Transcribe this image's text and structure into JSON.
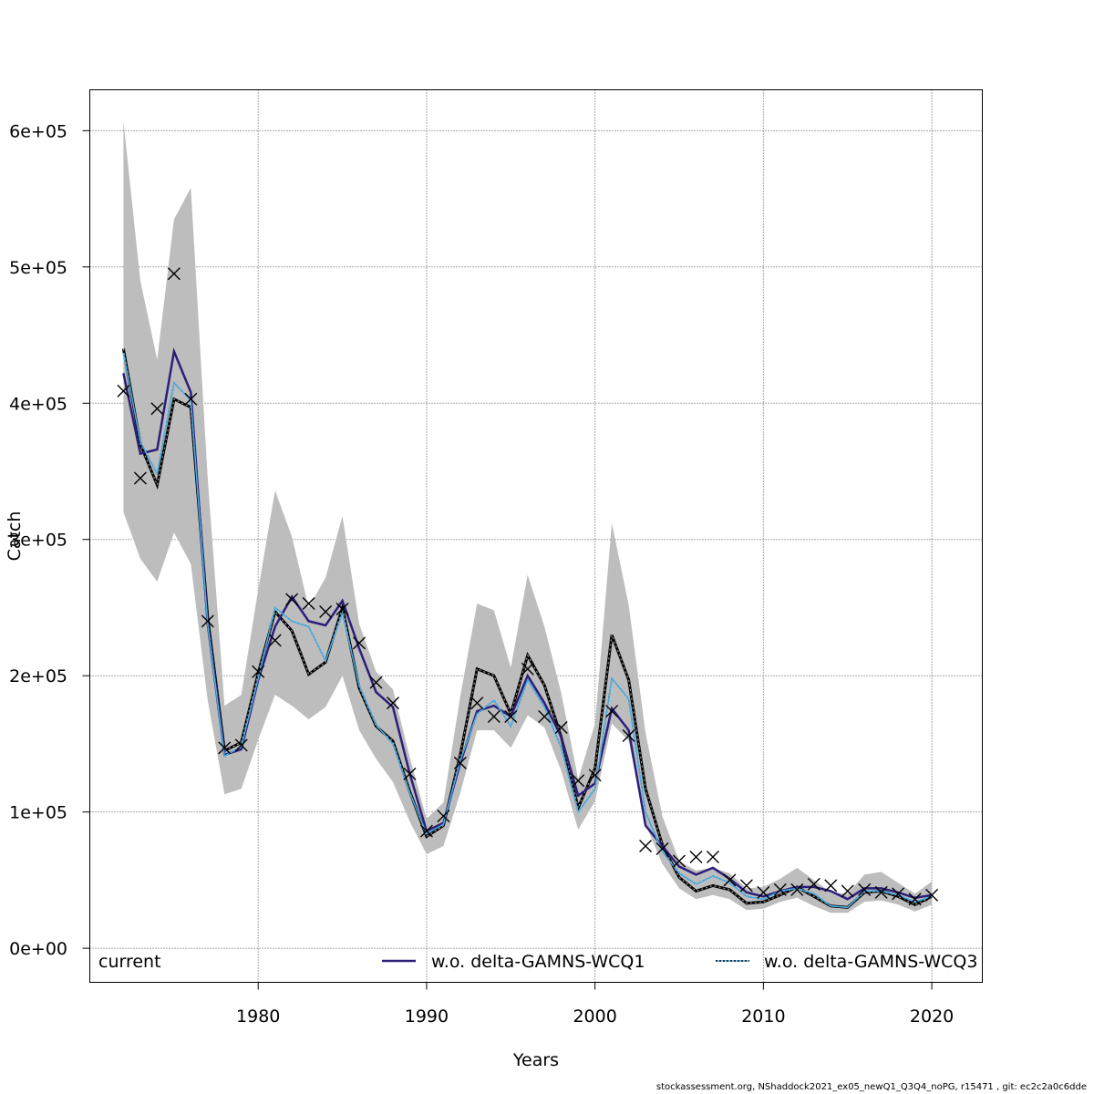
{
  "chart_data": {
    "type": "line",
    "title": "",
    "xlabel": "Years",
    "ylabel": "Catch",
    "xlim": [
      1970,
      2023
    ],
    "ylim": [
      -25000,
      630000
    ],
    "x_ticks": [
      1980,
      1990,
      2000,
      2010,
      2020
    ],
    "x_tick_labels": [
      "1980",
      "1990",
      "2000",
      "2010",
      "2020"
    ],
    "y_ticks": [
      0,
      100000,
      200000,
      300000,
      400000,
      500000,
      600000
    ],
    "y_tick_labels": [
      "0e+00",
      "1e+05",
      "2e+05",
      "3e+05",
      "4e+05",
      "5e+05",
      "6e+05"
    ],
    "grid": true,
    "legend_position": "bottom",
    "legend": [
      {
        "name": "current",
        "style": "none"
      },
      {
        "name": "w.o. delta-GAMNS-WCQ1",
        "style": "solid",
        "color": "#2d1e7a"
      },
      {
        "name": "w.o. delta-GAMNS-WCQ3",
        "style": "dotted",
        "color": "#49b0e8"
      }
    ],
    "years": [
      1972,
      1973,
      1974,
      1975,
      1976,
      1977,
      1978,
      1979,
      1980,
      1981,
      1982,
      1983,
      1984,
      1985,
      1986,
      1987,
      1988,
      1989,
      1990,
      1991,
      1992,
      1993,
      1994,
      1995,
      1996,
      1997,
      1998,
      1999,
      2000,
      2001,
      2002,
      2003,
      2004,
      2005,
      2006,
      2007,
      2008,
      2009,
      2010,
      2011,
      2012,
      2013,
      2014,
      2015,
      2016,
      2017,
      2018,
      2019,
      2020
    ],
    "band": {
      "name": "current confidence band",
      "color": "#bdbdbd",
      "upper": [
        607000,
        490000,
        432000,
        535000,
        558000,
        345000,
        178000,
        186000,
        263000,
        336000,
        302000,
        250000,
        272000,
        317000,
        238000,
        203000,
        190000,
        140000,
        95000,
        107000,
        185000,
        253000,
        248000,
        206000,
        274000,
        236000,
        187000,
        124000,
        165000,
        312000,
        252000,
        158000,
        97000,
        64000,
        57000,
        59000,
        55000,
        44000,
        45000,
        51000,
        59000,
        50000,
        41000,
        40000,
        54000,
        56000,
        48000,
        40000,
        49000
      ],
      "lower": [
        320000,
        286000,
        269000,
        305000,
        282000,
        182000,
        113000,
        117000,
        153000,
        186000,
        178000,
        168000,
        177000,
        200000,
        160000,
        139000,
        122000,
        93000,
        69000,
        75000,
        114000,
        160000,
        160000,
        147000,
        171000,
        162000,
        130000,
        87000,
        108000,
        165000,
        152000,
        91000,
        62000,
        44000,
        36000,
        39000,
        36000,
        28000,
        29000,
        34000,
        37000,
        31000,
        26000,
        26000,
        34000,
        35000,
        32000,
        27000,
        32000
      ]
    },
    "series": [
      {
        "name": "current",
        "color": "#000000",
        "style": "solid",
        "values": [
          440000,
          370000,
          340000,
          403000,
          397000,
          243000,
          145000,
          151000,
          202000,
          247000,
          233000,
          201000,
          210000,
          250000,
          191000,
          163000,
          152000,
          115000,
          82000,
          90000,
          142000,
          205000,
          200000,
          172000,
          215000,
          193000,
          155000,
          103000,
          132000,
          230000,
          197000,
          117000,
          76000,
          52000,
          42000,
          46000,
          43000,
          33000,
          34000,
          39000,
          45000,
          38000,
          31000,
          30000,
          41000,
          42000,
          38000,
          32000,
          38000
        ]
      },
      {
        "name": "w.o. delta-GAMNS-WCQ1",
        "color": "#2d1e7a",
        "style": "solid",
        "values": [
          422000,
          363000,
          366000,
          438000,
          408000,
          238000,
          142000,
          146000,
          197000,
          236000,
          258000,
          240000,
          237000,
          255000,
          220000,
          188000,
          177000,
          128000,
          86000,
          92000,
          136000,
          174000,
          178000,
          170000,
          200000,
          180000,
          155000,
          112000,
          121000,
          176000,
          160000,
          90000,
          75000,
          60000,
          54000,
          59000,
          51000,
          41000,
          38000,
          42000,
          45000,
          45000,
          42000,
          36000,
          44000,
          44000,
          41000,
          37000,
          39000
        ]
      },
      {
        "name": "w.o. delta-GAMNS-WCQ3",
        "color": "#49b0e8",
        "style": "dotted",
        "values": [
          437000,
          372000,
          348000,
          415000,
          402000,
          238000,
          141000,
          148000,
          198000,
          250000,
          240000,
          236000,
          211000,
          246000,
          193000,
          164000,
          150000,
          114000,
          84000,
          91000,
          138000,
          172000,
          182000,
          163000,
          197000,
          177000,
          147000,
          100000,
          117000,
          198000,
          183000,
          100000,
          71000,
          55000,
          47000,
          53000,
          48000,
          38000,
          36000,
          42000,
          44000,
          40000,
          31000,
          30000,
          42000,
          42000,
          39000,
          34000,
          38000
        ]
      }
    ],
    "observations": {
      "name": "observed catch",
      "marker": "x",
      "years": [
        1972,
        1973,
        1974,
        1975,
        1976,
        1977,
        1978,
        1979,
        1980,
        1981,
        1982,
        1983,
        1984,
        1985,
        1986,
        1987,
        1988,
        1989,
        1990,
        1991,
        1992,
        1993,
        1994,
        1995,
        1996,
        1997,
        1998,
        1999,
        2000,
        2001,
        2002,
        2003,
        2004,
        2005,
        2006,
        2007,
        2008,
        2009,
        2010,
        2011,
        2012,
        2013,
        2014,
        2015,
        2016,
        2017,
        2018,
        2019,
        2020
      ],
      "values": [
        409000,
        345000,
        396000,
        495000,
        403000,
        240000,
        147000,
        149000,
        203000,
        226000,
        256000,
        253000,
        247000,
        249000,
        224000,
        195000,
        180000,
        128000,
        86000,
        97000,
        136000,
        180000,
        170000,
        170000,
        205000,
        170000,
        162000,
        123000,
        127000,
        174000,
        156000,
        75000,
        73000,
        64000,
        67000,
        67000,
        50000,
        46000,
        41000,
        43000,
        43000,
        47000,
        46000,
        42000,
        43000,
        41000,
        40000,
        36000,
        39000
      ]
    }
  },
  "footer_text": "stockassessment.org, NShaddock2021_ex05_newQ1_Q3Q4_noPG, r15471 , git: ec2c2a0c6dde"
}
